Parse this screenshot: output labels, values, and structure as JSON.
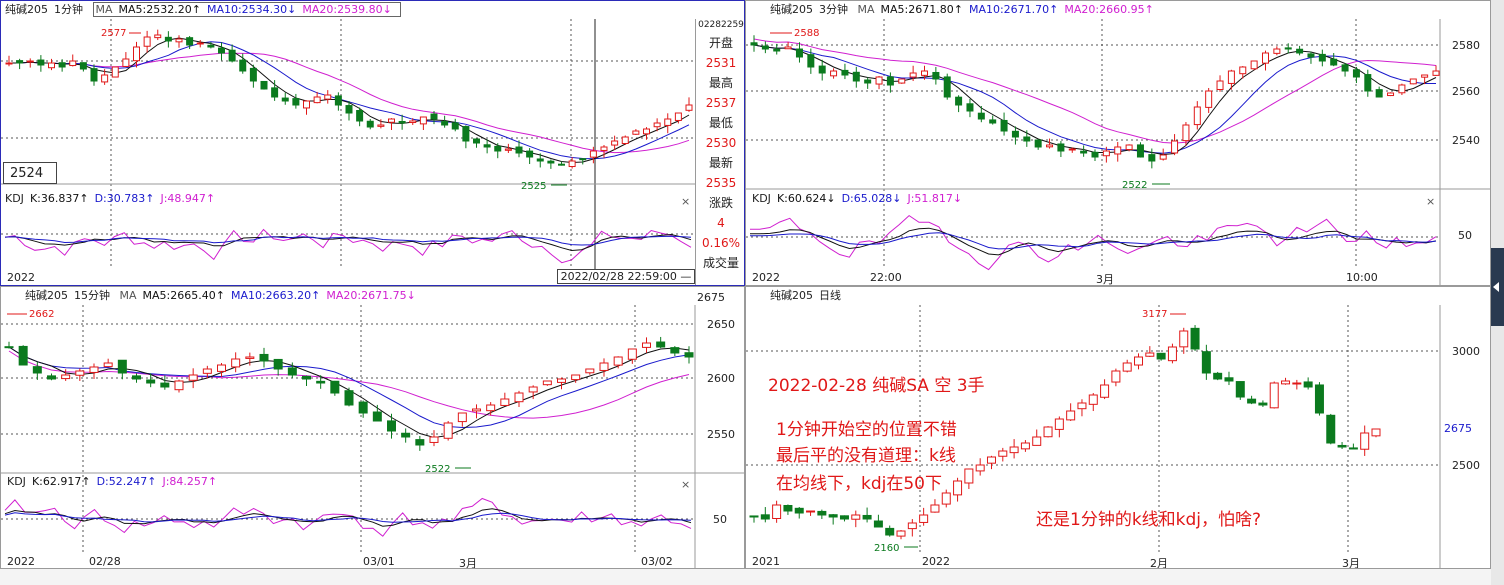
{
  "panel1": {
    "symbol": "纯碱205",
    "period": "1分钟",
    "ma_label": "MA",
    "ma5": "MA5:2532.20↑",
    "ma10": "MA10:2534.30↓",
    "ma20": "MA20:2539.80↓",
    "high_marker": "2577",
    "low_marker": "2525",
    "cursor_price": "2524",
    "kdj": {
      "label": "KDJ",
      "k": "K:36.837↑",
      "d": "D:30.783↑",
      "j": "J:48.947↑"
    },
    "x_start": "2022",
    "datetime": "2022/02/28 22:59:00 —",
    "info": {
      "code": "02282259",
      "open_label": "开盘",
      "open": "2531",
      "high_label": "最高",
      "high": "2537",
      "low_label": "最低",
      "low": "2530",
      "last_label": "最新",
      "last": "2535",
      "change_label": "涨跌",
      "change": "4",
      "change_pct": "0.16%",
      "volume_label": "成交量"
    }
  },
  "panel2": {
    "symbol": "纯碱205",
    "period": "3分钟",
    "ma_label": "MA",
    "ma5": "MA5:2671.80↑",
    "ma10": "MA10:2671.70↑",
    "ma20": "MA20:2660.95↑",
    "high_marker": "2588",
    "low_marker": "2522",
    "y_labels": [
      "2580",
      "2560",
      "2540"
    ],
    "kdj_level": "50",
    "kdj": {
      "label": "KDJ",
      "k": "K:60.624↓",
      "d": "D:65.028↓",
      "j": "J:51.817↓"
    },
    "x_labels": [
      "2022",
      "22:00",
      "3月",
      "10:00"
    ]
  },
  "panel3": {
    "symbol": "纯碱205",
    "period": "15分钟",
    "ma_label": "MA",
    "ma5": "MA5:2665.40↑",
    "ma10": "MA10:2663.20↑",
    "ma20": "MA20:2671.75↓",
    "high_marker": "2662",
    "low_marker": "2522",
    "top_value": "2675",
    "y_labels": [
      "2650",
      "2600",
      "2550"
    ],
    "kdj_level": "50",
    "kdj": {
      "label": "KDJ",
      "k": "K:62.917↑",
      "d": "D:52.247↑",
      "j": "J:84.257↑"
    },
    "x_labels": [
      "2022",
      "02/28",
      "03/01",
      "3月",
      "03/02"
    ]
  },
  "panel4": {
    "symbol": "纯碱205",
    "period": "日线",
    "high_marker": "3177",
    "low_marker": "2160",
    "y_labels": [
      "3000",
      "2675",
      "2500"
    ],
    "x_labels": [
      "2021",
      "2022",
      "2月",
      "3月"
    ],
    "annotations": {
      "title": "2022-02-28 纯碱SA 空 3手",
      "line1": "1分钟开始空的位置不错",
      "line2": "最后平的没有道理：k线",
      "line3": "在均线下，kdj在50下",
      "line4": "还是1分钟的k线和kdj，怕啥?"
    }
  },
  "colors": {
    "up": "#e01818",
    "down": "#0b7a1e",
    "ma10": "#1a1acc",
    "ma20": "#d020d0",
    "kline": "#111111"
  },
  "close_icon": "×"
}
